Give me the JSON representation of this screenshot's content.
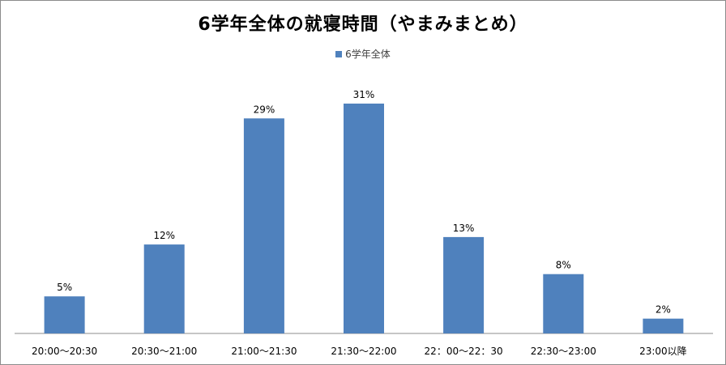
{
  "chart_data": {
    "type": "bar",
    "title": "6学年全体の就寝時間（やまみまとめ）",
    "categories": [
      "20:00～20:30",
      "20:30～21:00",
      "21:00～21:30",
      "21:30～22:00",
      "22：00～22：30",
      "22:30～23:00",
      "23:00以降"
    ],
    "series": [
      {
        "name": "6学年全体",
        "values": [
          5,
          12,
          29,
          31,
          13,
          8,
          2
        ]
      }
    ],
    "value_labels": [
      "5%",
      "12%",
      "29%",
      "31%",
      "13%",
      "8%",
      "2%"
    ],
    "ylim": [
      0,
      35
    ],
    "grid": false,
    "legend_position": "top-center",
    "bar_color": "#4f81bd"
  }
}
